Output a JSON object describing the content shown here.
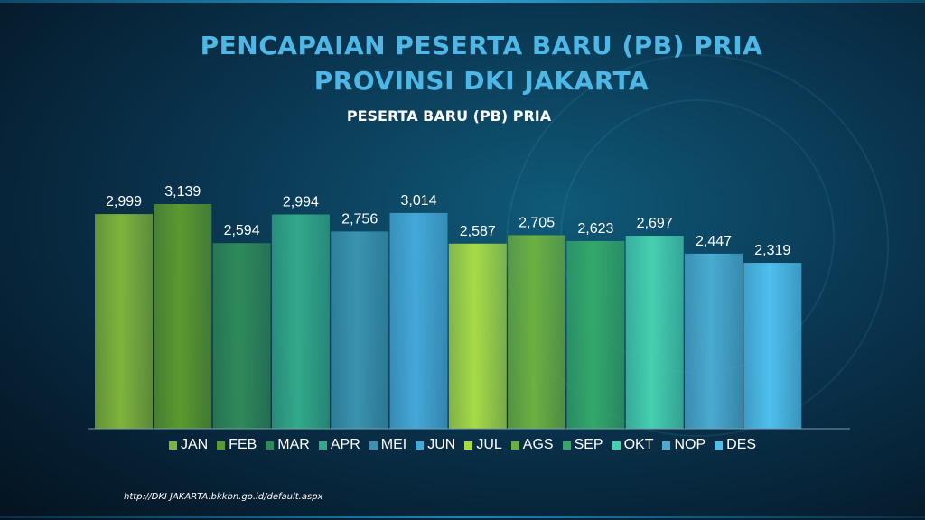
{
  "title_line1": "PENCAPAIAN PESERTA BARU (PB) PRIA",
  "title_line2": "PROVINSI DKI JAKARTA",
  "source": "http://DKI JAKARTA.bkkbn.go.id/default.aspx",
  "chart_data": {
    "type": "bar",
    "title": "PESERTA BARU (PB) PRIA",
    "categories": [
      "JAN",
      "FEB",
      "MAR",
      "APR",
      "MEI",
      "JUN",
      "JUL",
      "AGS",
      "SEP",
      "OKT",
      "NOP",
      "DES"
    ],
    "values": [
      2999,
      3139,
      2594,
      2994,
      2756,
      3014,
      2587,
      2705,
      2623,
      2697,
      2447,
      2319
    ],
    "value_labels": [
      "2,999",
      "3,139",
      "2,594",
      "2,994",
      "2,756",
      "3,014",
      "2,587",
      "2,705",
      "2,623",
      "2,697",
      "2,447",
      "2,319"
    ],
    "colors": [
      "#7fb43a",
      "#5a9a2e",
      "#2f8a5a",
      "#33a98a",
      "#3a93b0",
      "#45a8d8",
      "#a7db45",
      "#6cb040",
      "#34a86a",
      "#46cfb0",
      "#4aaad0",
      "#4fbfee"
    ],
    "ylim": [
      0,
      3200
    ],
    "legend_position": "bottom",
    "grid": false
  }
}
